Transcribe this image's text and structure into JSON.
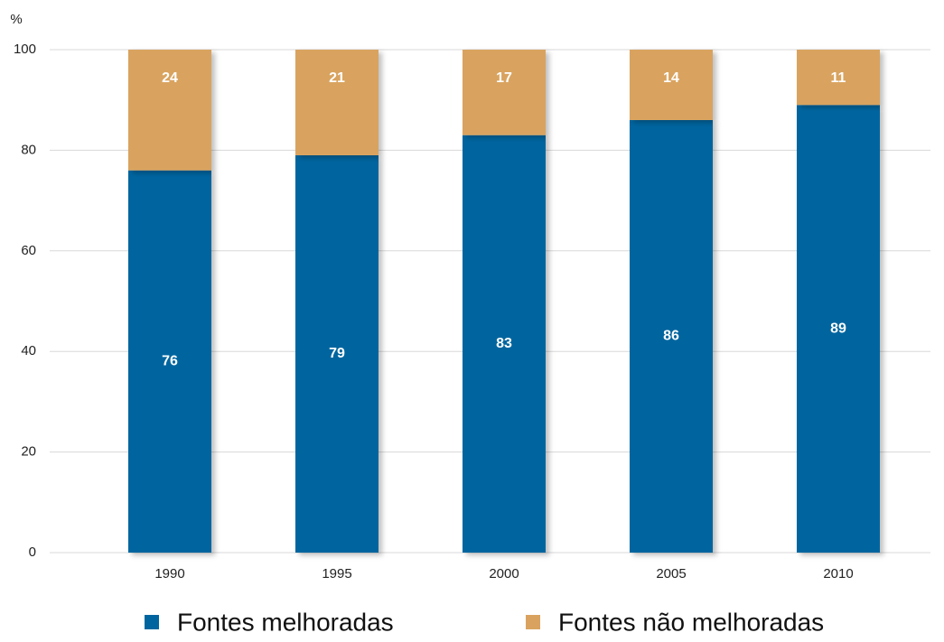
{
  "chart_data": {
    "type": "stacked_bar",
    "y_label": "%",
    "categories": [
      "1990",
      "1995",
      "2000",
      "2005",
      "2010"
    ],
    "series": [
      {
        "name": "Fontes melhoradas",
        "color": "#00659f",
        "values": [
          76,
          79,
          83,
          86,
          89
        ]
      },
      {
        "name": "Fontes não melhoradas",
        "color": "#d9a35f",
        "values": [
          24,
          21,
          17,
          14,
          11
        ]
      }
    ],
    "ylim": [
      0,
      100
    ],
    "yticks": [
      0,
      20,
      40,
      60,
      80,
      100
    ],
    "grid": true,
    "legend": "bottom"
  }
}
